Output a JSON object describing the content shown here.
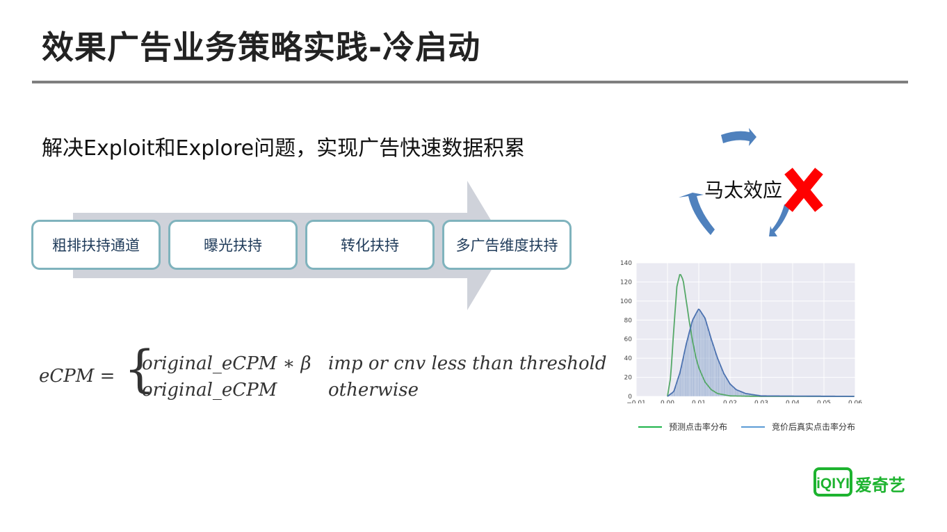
{
  "title": "效果广告业务策略实践-冷启动",
  "subtitle": "解决Exploit和Explore问题，实现广告快速数据积累",
  "steps": [
    "粗排扶持通道",
    "曝光扶持",
    "转化扶持",
    "多广告维度扶持"
  ],
  "formula": {
    "lhs": "eCPM =",
    "case1": "original_eCPM ∗ β",
    "cond1": "imp or cnv less than threshold",
    "case2": "original_eCPM",
    "cond2": "otherwise"
  },
  "cycle": {
    "label": "马太效应",
    "arrow_color": "#4f81bd",
    "cross_color": "#ff0000"
  },
  "logo": {
    "mark": "iQIYI",
    "text": "爱奇艺",
    "color": "#1db32f"
  },
  "chart_data": {
    "type": "line",
    "xlim": [
      -0.01,
      0.06
    ],
    "ylim": [
      0,
      140
    ],
    "xticks": [
      "−0.01",
      "0.00",
      "0.01",
      "0.02",
      "0.03",
      "0.04",
      "0.05",
      "0.06"
    ],
    "yticks": [
      "0",
      "20",
      "40",
      "60",
      "80",
      "100",
      "120",
      "140"
    ],
    "grid": true,
    "legend": "bottom",
    "series": [
      {
        "name": "预测点击率分布",
        "color": "#55a868",
        "x": [
          0,
          0.001,
          0.002,
          0.003,
          0.004,
          0.005,
          0.006,
          0.007,
          0.008,
          0.009,
          0.01,
          0.012,
          0.014,
          0.016,
          0.02,
          0.03,
          0.06
        ],
        "y": [
          0,
          20,
          70,
          115,
          129,
          122,
          100,
          78,
          58,
          42,
          30,
          15,
          7,
          3,
          0.5,
          0,
          0
        ]
      },
      {
        "name": "竞价后真实点击率分布",
        "color": "#4c72b0",
        "histogram": true,
        "x": [
          0,
          0.002,
          0.004,
          0.006,
          0.008,
          0.01,
          0.012,
          0.014,
          0.016,
          0.018,
          0.02,
          0.022,
          0.025,
          0.03,
          0.06
        ],
        "y": [
          0,
          5,
          25,
          55,
          80,
          92,
          82,
          60,
          40,
          24,
          13,
          7,
          3,
          0.5,
          0
        ]
      }
    ],
    "legend_colors": [
      "#1db34a",
      "#5b9bd5"
    ]
  }
}
